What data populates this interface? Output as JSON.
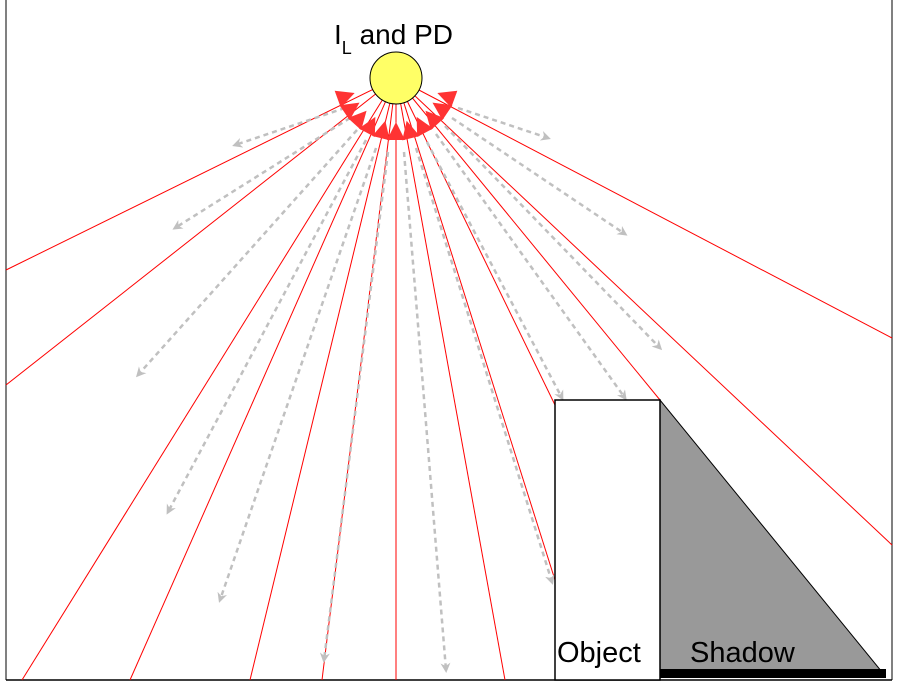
{
  "source": {
    "label_main": "I",
    "label_subscript": "L",
    "label_rest": " and PD",
    "fill_color": "#ffff66"
  },
  "labels": {
    "object": "Object",
    "shadow": "Shadow"
  },
  "colors": {
    "light_ray": "#ff0000",
    "reflected_ray": "#c0c0c0",
    "arrowhead": "#ff3333",
    "shadow_fill": "#999999",
    "shadow_base": "#000000",
    "glow_top": "#ffff66",
    "glow_bottom": "#ffffff"
  }
}
